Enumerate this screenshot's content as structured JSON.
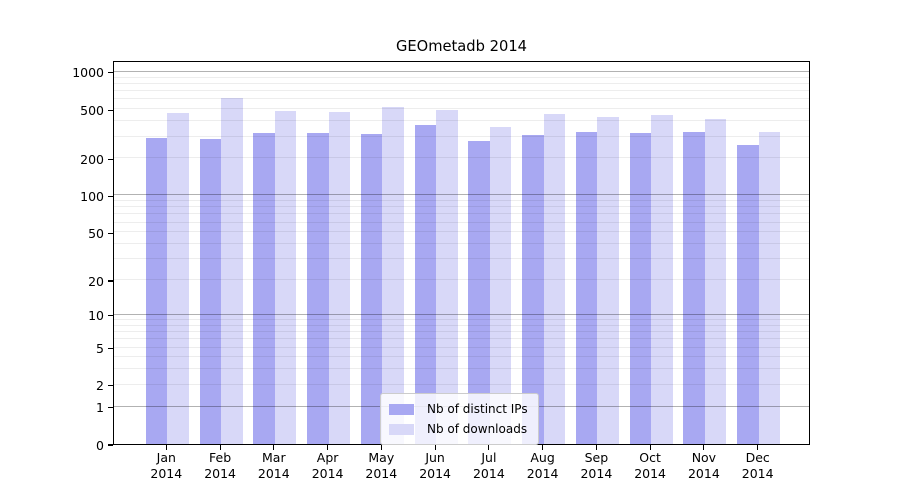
{
  "figure": {
    "title": "GEOmetadb 2014"
  },
  "chart_data": {
    "type": "bar",
    "title": "GEOmetadb 2014",
    "xlabel": "",
    "ylabel": "",
    "categories": [
      "Jan 2014",
      "Feb 2014",
      "Mar 2014",
      "Apr 2014",
      "May 2014",
      "Jun 2014",
      "Jul 2014",
      "Aug 2014",
      "Sep 2014",
      "Oct 2014",
      "Nov 2014",
      "Dec 2014"
    ],
    "x_tick_labels": [
      [
        "Jan",
        "2014"
      ],
      [
        "Feb",
        "2014"
      ],
      [
        "Mar",
        "2014"
      ],
      [
        "Apr",
        "2014"
      ],
      [
        "May",
        "2014"
      ],
      [
        "Jun",
        "2014"
      ],
      [
        "Jul",
        "2014"
      ],
      [
        "Aug",
        "2014"
      ],
      [
        "Sep",
        "2014"
      ],
      [
        "Oct",
        "2014"
      ],
      [
        "Nov",
        "2014"
      ],
      [
        "Dec",
        "2014"
      ]
    ],
    "series": [
      {
        "name": "Nb of distinct IPs",
        "color": "#a8a8f2",
        "values": [
          292,
          286,
          323,
          319,
          315,
          374,
          275,
          309,
          329,
          321,
          327,
          257
        ]
      },
      {
        "name": "Nb of downloads",
        "color": "#d8d8f8",
        "values": [
          465,
          620,
          485,
          473,
          522,
          495,
          358,
          456,
          430,
          452,
          414,
          329
        ]
      }
    ],
    "yaxis": {
      "scale": "log1p",
      "ticks": [
        1000,
        500,
        200,
        100,
        50,
        20,
        10,
        5,
        2,
        1,
        0
      ],
      "major_grid_values": [
        1,
        10,
        100,
        1000
      ],
      "ylim": [
        0,
        1245
      ],
      "grid": true
    },
    "legend": {
      "position": "lower center",
      "labels": [
        "Nb of distinct IPs",
        "Nb of downloads"
      ]
    },
    "colors": {
      "major_grid": "#b0b0b0",
      "minor_grid": "#e8e8e8",
      "spine": "#000000",
      "background": "#ffffff"
    }
  }
}
